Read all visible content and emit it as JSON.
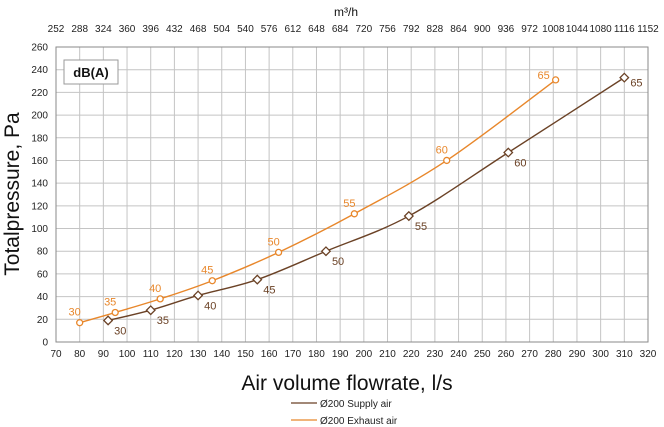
{
  "chart_data": {
    "type": "line",
    "x_top_label": "m³/h",
    "xlabel": "Air volume flowrate, l/s",
    "ylabel": "Totalpressure, Pa",
    "unit_box": "dB(A)",
    "xlim": [
      70,
      320
    ],
    "ylim": [
      0,
      260
    ],
    "x_ticks": [
      70,
      80,
      90,
      100,
      110,
      120,
      130,
      140,
      150,
      160,
      170,
      180,
      190,
      200,
      210,
      220,
      230,
      240,
      250,
      260,
      270,
      280,
      290,
      300,
      310,
      320
    ],
    "y_ticks": [
      0,
      20,
      40,
      60,
      80,
      100,
      120,
      140,
      160,
      180,
      200,
      220,
      240,
      260
    ],
    "x_top_ticks": [
      "252",
      "288",
      "324",
      "360",
      "396",
      "432",
      "468",
      "504",
      "540",
      "576",
      "612",
      "648",
      "684",
      "720",
      "756",
      "792",
      "828",
      "864",
      "900",
      "936",
      "972",
      "1008",
      "1044",
      "1080",
      "1116",
      "1152"
    ],
    "grid": true,
    "legend_position": "bottom-center",
    "series": [
      {
        "name": "Ø200 Supply air",
        "color": "#6b4226",
        "marker": "square",
        "x": [
          92,
          110,
          130,
          155,
          184,
          219,
          261,
          310
        ],
        "y": [
          19,
          28,
          41,
          55,
          80,
          111,
          167,
          233
        ],
        "labels": [
          "30",
          "35",
          "40",
          "45",
          "50",
          "55",
          "60",
          "65"
        ]
      },
      {
        "name": "Ø200 Exhaust air",
        "color": "#e8872b",
        "marker": "circle",
        "x": [
          80,
          95,
          114,
          136,
          164,
          196,
          235,
          281
        ],
        "y": [
          17,
          26,
          38,
          54,
          79,
          113,
          160,
          231
        ],
        "labels": [
          "30",
          "35",
          "40",
          "45",
          "50",
          "55",
          "60",
          "65"
        ]
      }
    ]
  }
}
